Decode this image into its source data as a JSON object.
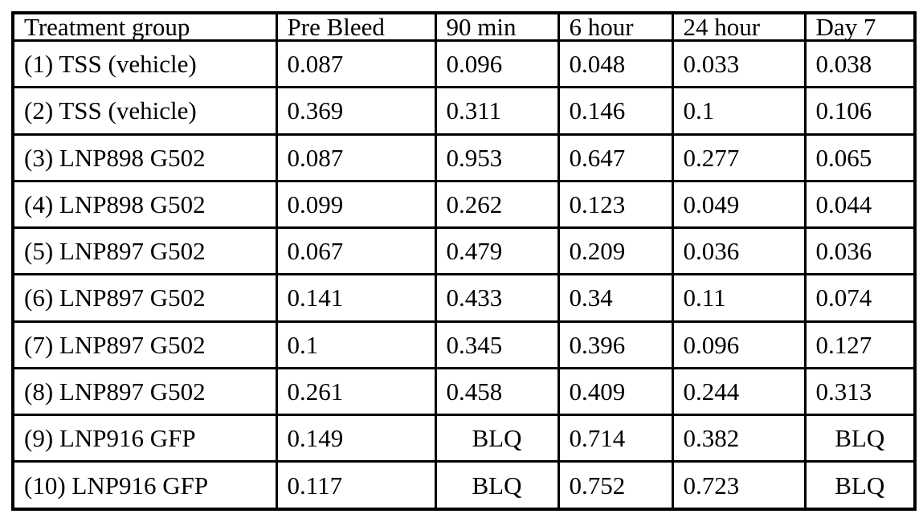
{
  "table": {
    "columns": [
      "Treatment group",
      "Pre Bleed",
      "90 min",
      "6 hour",
      "24 hour",
      "Day 7"
    ],
    "rows": [
      {
        "cells": [
          "(1) TSS (vehicle)",
          "0.087",
          "0.096",
          "0.048",
          "0.033",
          "0.038"
        ]
      },
      {
        "cells": [
          "(2) TSS (vehicle)",
          "0.369",
          "0.311",
          "0.146",
          "0.1",
          "0.106"
        ]
      },
      {
        "cells": [
          "(3) LNP898 G502",
          "0.087",
          "0.953",
          "0.647",
          "0.277",
          "0.065"
        ]
      },
      {
        "cells": [
          "(4) LNP898 G502",
          "0.099",
          "0.262",
          "0.123",
          "0.049",
          "0.044"
        ]
      },
      {
        "cells": [
          "(5) LNP897 G502",
          "0.067",
          "0.479",
          "0.209",
          "0.036",
          "0.036"
        ]
      },
      {
        "cells": [
          "(6) LNP897 G502",
          "0.141",
          "0.433",
          "0.34",
          "0.11",
          "0.074"
        ]
      },
      {
        "cells": [
          "(7) LNP897 G502",
          "0.1",
          "0.345",
          "0.396",
          "0.096",
          "0.127"
        ]
      },
      {
        "cells": [
          "(8) LNP897 G502",
          "0.261",
          "0.458",
          "0.409",
          "0.244",
          "0.313"
        ]
      },
      {
        "cells": [
          "(9) LNP916 GFP",
          "0.149",
          "BLQ",
          "0.714",
          "0.382",
          "BLQ"
        ]
      },
      {
        "cells": [
          "(10) LNP916 GFP",
          "0.117",
          "BLQ",
          "0.752",
          "0.723",
          "BLQ"
        ]
      }
    ],
    "below_limit_label": "BLQ"
  },
  "chart_data": {
    "type": "table",
    "columns": [
      "Treatment group",
      "Pre Bleed",
      "90 min",
      "6 hour",
      "24 hour",
      "Day 7"
    ],
    "rows": [
      [
        "(1) TSS (vehicle)",
        "0.087",
        "0.096",
        "0.048",
        "0.033",
        "0.038"
      ],
      [
        "(2) TSS (vehicle)",
        "0.369",
        "0.311",
        "0.146",
        "0.1",
        "0.106"
      ],
      [
        "(3) LNP898 G502",
        "0.087",
        "0.953",
        "0.647",
        "0.277",
        "0.065"
      ],
      [
        "(4) LNP898 G502",
        "0.099",
        "0.262",
        "0.123",
        "0.049",
        "0.044"
      ],
      [
        "(5) LNP897 G502",
        "0.067",
        "0.479",
        "0.209",
        "0.036",
        "0.036"
      ],
      [
        "(6) LNP897 G502",
        "0.141",
        "0.433",
        "0.34",
        "0.11",
        "0.074"
      ],
      [
        "(7) LNP897 G502",
        "0.1",
        "0.345",
        "0.396",
        "0.096",
        "0.127"
      ],
      [
        "(8) LNP897 G502",
        "0.261",
        "0.458",
        "0.409",
        "0.244",
        "0.313"
      ],
      [
        "(9) LNP916 GFP",
        "0.149",
        "BLQ",
        "0.714",
        "0.382",
        "BLQ"
      ],
      [
        "(10) LNP916 GFP",
        "0.117",
        "BLQ",
        "0.752",
        "0.723",
        "BLQ"
      ]
    ]
  }
}
